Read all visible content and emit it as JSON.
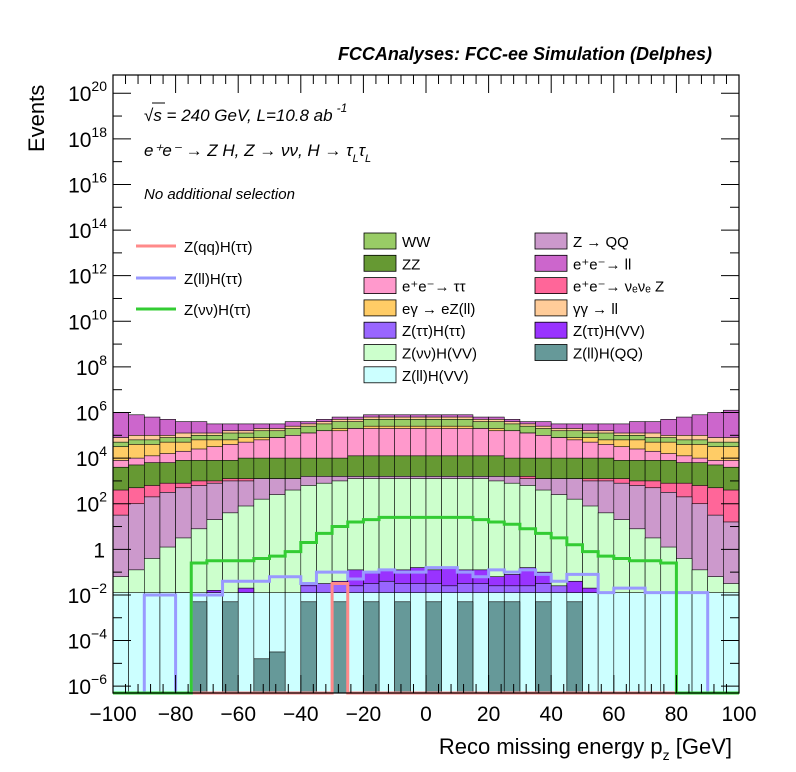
{
  "chart_data": {
    "type": "area",
    "title": "FCCAnalyses: FCC-ee Simulation (Delphes)",
    "xlabel": "Reco missing energy p",
    "xlabel_sub": "z",
    "xlabel_unit": " [GeV]",
    "ylabel": "Events",
    "xlim": [
      -100,
      100
    ],
    "ylim_log10": [
      -6.3,
      20.8
    ],
    "y_scale": "log",
    "x_ticks": [
      -100,
      -80,
      -60,
      -40,
      -20,
      0,
      20,
      40,
      60,
      80,
      100
    ],
    "x_tick_labels": [
      "−100",
      "−80",
      "−60",
      "−40",
      "−20",
      "0",
      "20",
      "40",
      "60",
      "80",
      "100"
    ],
    "y_ticks": [
      {
        "exp": 20,
        "base": "10",
        "sup": "20"
      },
      {
        "exp": 18,
        "base": "10",
        "sup": "18"
      },
      {
        "exp": 16,
        "base": "10",
        "sup": "16"
      },
      {
        "exp": 14,
        "base": "10",
        "sup": "14"
      },
      {
        "exp": 12,
        "base": "10",
        "sup": "12"
      },
      {
        "exp": 10,
        "base": "10",
        "sup": "10"
      },
      {
        "exp": 8,
        "base": "10",
        "sup": "8"
      },
      {
        "exp": 6,
        "base": "10",
        "sup": "6"
      },
      {
        "exp": 4,
        "base": "10",
        "sup": "4"
      },
      {
        "exp": 2,
        "base": "10",
        "sup": "2"
      },
      {
        "exp": 0,
        "base": "1",
        "sup": ""
      },
      {
        "exp": -2,
        "base": "10",
        "sup": "−2"
      },
      {
        "exp": -4,
        "base": "10",
        "sup": "−4"
      },
      {
        "exp": -6,
        "base": "10",
        "sup": "−6"
      }
    ],
    "annotations": {
      "energy": "√s = 240 GeV, L=10.8 ab",
      "energy_sup": "-1",
      "process": "e⁺e⁻ → Z H, Z  → νν, H  → τ",
      "process_sub1": "L",
      "process_tau2": "τ",
      "process_sub2": "L",
      "selection": "No additional selection"
    },
    "signals": [
      {
        "name": "Z(qq)H(ττ)",
        "color": "#ff8a8a"
      },
      {
        "name": "Z(ll)H(ττ)",
        "color": "#9999ff"
      },
      {
        "name": "Z(νν)H(ττ)",
        "color": "#33cc33"
      }
    ],
    "backgrounds": [
      {
        "name": "WW",
        "color": "#99cc66"
      },
      {
        "name": "ZZ",
        "color": "#669933"
      },
      {
        "name": "e⁺e⁻→ ττ",
        "color": "#ff99cc"
      },
      {
        "name": "eγ → eZ(ll)",
        "color": "#ffcc66"
      },
      {
        "name": "Z(ττ)H(ττ)",
        "color": "#9966ff"
      },
      {
        "name": "Z(νν)H(VV)",
        "color": "#ccffcc"
      },
      {
        "name": "Z(ll)H(VV)",
        "color": "#ccffff"
      },
      {
        "name": "Z → QQ",
        "color": "#cc99cc"
      },
      {
        "name": "e⁺e⁻→ ll",
        "color": "#cc66cc"
      },
      {
        "name": "e⁺e⁻→ νₑνₑ Z",
        "color": "#ff6699"
      },
      {
        "name": "γγ → ll",
        "color": "#ffcc99"
      },
      {
        "name": "Z(ττ)H(VV)",
        "color": "#9933ff"
      },
      {
        "name": "Z(ll)H(QQ)",
        "color": "#669999"
      }
    ],
    "bin_edges_start": -100,
    "bin_width": 5,
    "stack_log10_tops": {
      "ZllHQQ": [
        -7,
        -7,
        -7,
        -7,
        -7,
        -2.3,
        -7,
        -2.3,
        -7,
        -4.8,
        -4.5,
        -7,
        -2.3,
        -7,
        -2.3,
        -7,
        -2.3,
        -7,
        -2.3,
        -7,
        -2.3,
        -7,
        -2.3,
        -7,
        -2.3,
        -2.3,
        -7,
        -2.3,
        -7,
        -2.3,
        -7,
        -7,
        -7,
        -7,
        -7,
        -7,
        -7,
        -7,
        -7,
        -7
      ],
      "ZllHVV": [
        -1.9,
        -1.9,
        -1.9,
        -1.9,
        -1.9,
        -1.9,
        -1.9,
        -1.9,
        -1.9,
        -1.9,
        -1.9,
        -1.9,
        -1.9,
        -1.9,
        -1.9,
        -1.9,
        -1.9,
        -1.9,
        -1.9,
        -1.9,
        -1.9,
        -1.9,
        -1.9,
        -1.9,
        -1.9,
        -1.9,
        -1.9,
        -1.9,
        -1.9,
        -1.9,
        -1.9,
        -1.9,
        -1.9,
        -1.9,
        -1.9,
        -1.9,
        -1.9,
        -1.9,
        -1.9,
        -1.9
      ],
      "ZttHtt": [
        -7,
        -7,
        -7,
        -7,
        -7,
        -7,
        -7,
        -7,
        -7,
        -7,
        -7,
        -7,
        -1.6,
        -1.5,
        -1.5,
        -1.6,
        -1.5,
        -1.4,
        -1.5,
        -1.5,
        -1.5,
        -1.6,
        -1.5,
        -1.5,
        -1.6,
        -1.6,
        -1.6,
        -1.5,
        -1.6,
        -7,
        -7,
        -7,
        -7,
        -7,
        -7,
        -7,
        -7,
        -7,
        -7,
        -7
      ],
      "ZttHVV": [
        -7,
        -7,
        -7,
        -7,
        -1.9,
        -2.0,
        -1.8,
        -7,
        -1.7,
        -7,
        -7,
        -7,
        -1.5,
        -7,
        -1.4,
        -0.9,
        -1.0,
        -0.9,
        -0.9,
        -0.8,
        -0.9,
        -0.8,
        -0.9,
        -0.9,
        -1.2,
        -1.1,
        -0.8,
        -1.0,
        -1.6,
        -1.4,
        -1.7,
        -7,
        -7,
        -7,
        -7,
        -7,
        -7,
        -7,
        -7,
        -7
      ],
      "ZnnHVV": [
        -1.2,
        -0.9,
        -0.4,
        0.1,
        0.5,
        0.9,
        1.3,
        1.6,
        1.9,
        2.2,
        2.4,
        2.6,
        2.8,
        2.9,
        3.0,
        3.1,
        3.1,
        3.1,
        3.1,
        3.1,
        3.1,
        3.1,
        3.1,
        3.1,
        3.0,
        2.9,
        2.8,
        2.6,
        2.4,
        2.2,
        1.9,
        1.6,
        1.3,
        0.9,
        0.5,
        0.1,
        -0.4,
        -0.9,
        -1.2,
        -1.5
      ],
      "ZQQ": [
        1.5,
        2.0,
        2.3,
        2.5,
        2.7,
        2.8,
        2.9,
        3.0,
        3.0,
        3.1,
        3.1,
        3.1,
        3.2,
        3.2,
        3.2,
        3.2,
        3.2,
        3.2,
        3.2,
        3.2,
        3.2,
        3.2,
        3.2,
        3.2,
        3.2,
        3.2,
        3.1,
        3.1,
        3.1,
        3.1,
        3.0,
        3.0,
        2.9,
        2.8,
        2.7,
        2.5,
        2.3,
        2.0,
        1.5,
        1.2
      ],
      "eeNuNuZ": [
        2.6,
        2.7,
        2.8,
        2.9,
        2.9,
        3.0,
        3.0,
        3.1,
        3.1,
        3.1,
        3.1,
        3.1,
        3.1,
        3.1,
        3.2,
        3.2,
        3.2,
        3.2,
        3.2,
        3.2,
        3.2,
        3.2,
        3.2,
        3.2,
        3.2,
        3.2,
        3.2,
        3.1,
        3.1,
        3.1,
        3.1,
        3.1,
        3.1,
        3.0,
        3.0,
        2.9,
        2.9,
        2.8,
        2.7,
        2.6
      ],
      "ZZ": [
        3.6,
        3.7,
        3.8,
        3.8,
        3.9,
        3.9,
        3.9,
        3.9,
        4.0,
        4.0,
        4.0,
        4.0,
        4.0,
        4.0,
        4.0,
        4.1,
        4.1,
        4.1,
        4.1,
        4.1,
        4.1,
        4.1,
        4.1,
        4.1,
        4.1,
        4.0,
        4.0,
        4.0,
        4.0,
        4.0,
        4.0,
        4.0,
        3.9,
        3.9,
        3.9,
        3.9,
        3.8,
        3.8,
        3.7,
        3.6
      ],
      "ee_tautau": [
        3.9,
        4.0,
        4.1,
        4.2,
        4.3,
        4.4,
        4.5,
        4.6,
        4.7,
        4.8,
        4.9,
        5.0,
        5.1,
        5.2,
        5.2,
        5.3,
        5.3,
        5.3,
        5.3,
        5.3,
        5.3,
        5.3,
        5.3,
        5.3,
        5.2,
        5.2,
        5.1,
        5.0,
        4.9,
        4.8,
        4.7,
        4.6,
        4.5,
        4.4,
        4.3,
        4.2,
        4.1,
        4.0,
        3.9,
        3.9
      ],
      "egamma": [
        4.5,
        4.6,
        4.6,
        4.7,
        4.7,
        4.8,
        4.8,
        4.8,
        4.9,
        4.9,
        4.9,
        5.0,
        5.1,
        5.2,
        5.3,
        5.3,
        5.4,
        5.4,
        5.4,
        5.4,
        5.4,
        5.4,
        5.4,
        5.3,
        5.3,
        5.2,
        5.1,
        5.0,
        4.9,
        4.9,
        4.9,
        4.8,
        4.8,
        4.8,
        4.7,
        4.7,
        4.6,
        4.6,
        4.5,
        4.5
      ],
      "WW": [
        4.7,
        4.8,
        4.8,
        4.9,
        4.9,
        5.0,
        5.0,
        5.1,
        5.1,
        5.2,
        5.2,
        5.3,
        5.4,
        5.5,
        5.6,
        5.6,
        5.7,
        5.7,
        5.7,
        5.7,
        5.7,
        5.7,
        5.7,
        5.6,
        5.6,
        5.5,
        5.4,
        5.3,
        5.2,
        5.2,
        5.1,
        5.1,
        5.0,
        5.0,
        4.9,
        4.9,
        4.8,
        4.8,
        4.7,
        4.7
      ],
      "gammagamma": [
        4.9,
        5.0,
        5.0,
        5.0,
        5.1,
        5.1,
        5.1,
        5.2,
        5.2,
        5.3,
        5.3,
        5.4,
        5.5,
        5.6,
        5.7,
        5.7,
        5.8,
        5.8,
        5.8,
        5.8,
        5.8,
        5.8,
        5.8,
        5.7,
        5.7,
        5.6,
        5.5,
        5.4,
        5.3,
        5.3,
        5.2,
        5.2,
        5.1,
        5.1,
        5.1,
        5.0,
        5.0,
        5.0,
        4.9,
        4.9
      ],
      "ee_ll": [
        6.0,
        5.9,
        5.8,
        5.7,
        5.6,
        5.6,
        5.5,
        5.5,
        5.5,
        5.5,
        5.5,
        5.6,
        5.6,
        5.7,
        5.8,
        5.8,
        5.9,
        5.9,
        5.9,
        5.9,
        5.9,
        5.9,
        5.9,
        5.8,
        5.8,
        5.7,
        5.6,
        5.6,
        5.5,
        5.5,
        5.5,
        5.5,
        5.5,
        5.6,
        5.6,
        5.7,
        5.8,
        5.9,
        6.0,
        6.1
      ]
    },
    "signal_log10": {
      "ZnnHtt": [
        -7,
        -7,
        -7,
        -7,
        -7,
        -0.6,
        -0.5,
        -0.5,
        -0.5,
        -0.4,
        -0.3,
        -0.1,
        0.3,
        0.7,
        1.0,
        1.2,
        1.3,
        1.4,
        1.4,
        1.4,
        1.4,
        1.4,
        1.4,
        1.3,
        1.2,
        1.1,
        0.9,
        0.7,
        0.5,
        0.2,
        -0.1,
        -0.3,
        -0.4,
        -0.5,
        -0.5,
        -0.6,
        -7,
        -7,
        -7,
        -7
      ],
      "ZllHtt": [
        -7,
        -7,
        -2.0,
        -2.0,
        -7,
        -2.0,
        -2.0,
        -1.4,
        -1.4,
        -1.4,
        -1.2,
        -1.2,
        -1.5,
        -1.0,
        -1.0,
        -1.3,
        -1.0,
        -0.9,
        -1.0,
        -1.0,
        -0.8,
        -0.8,
        -1.0,
        -1.2,
        -0.9,
        -1.0,
        -0.9,
        -1.1,
        -1.4,
        -1.1,
        -1.1,
        -1.9,
        -1.7,
        -1.7,
        -1.9,
        -1.9,
        -1.9,
        -1.9,
        -7,
        -7
      ],
      "ZqqHtt": [
        -7,
        -7,
        -7,
        -7,
        -7,
        -7,
        -7,
        -7,
        -7,
        -7,
        -7,
        -7,
        -7,
        -7,
        -1.5,
        -7,
        -7,
        -7,
        -7,
        -7,
        -7,
        -7,
        -7,
        -7,
        -7,
        -7,
        -7,
        -7,
        -7,
        -7,
        -7,
        -7,
        -7,
        -7,
        -7,
        -7,
        -7,
        -7,
        -7,
        -7
      ]
    },
    "legend_placement": "inside-top"
  }
}
